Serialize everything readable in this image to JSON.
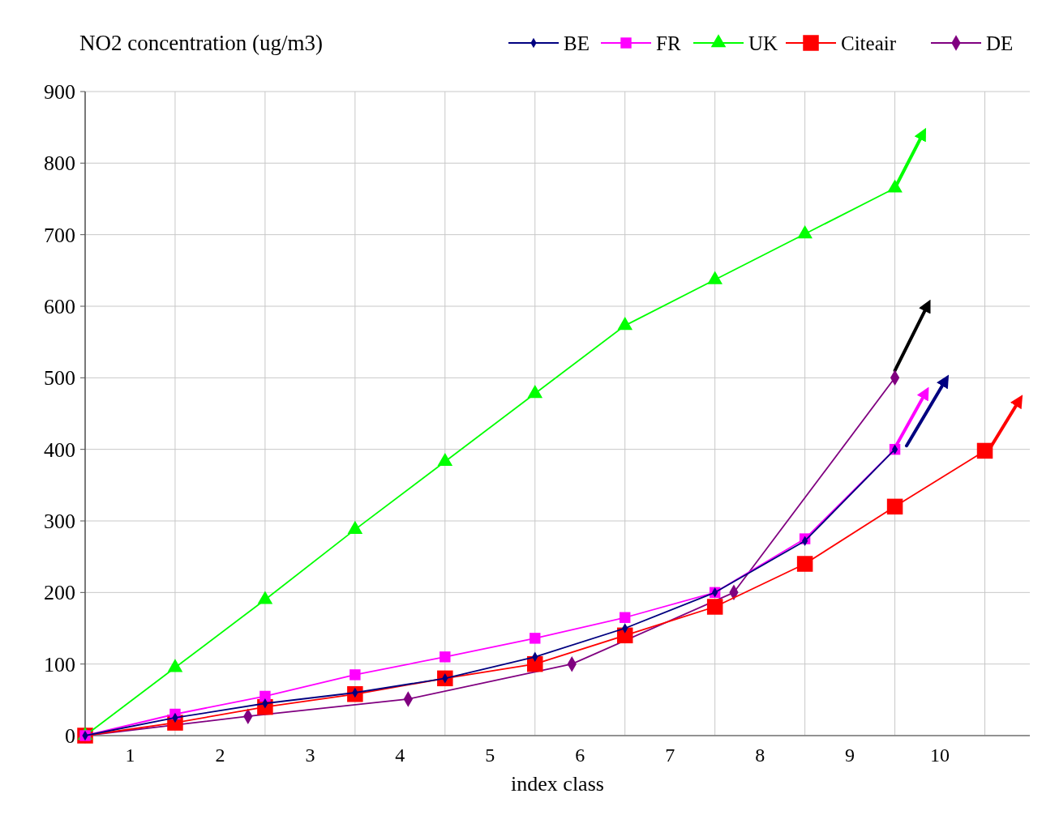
{
  "chart_data": {
    "type": "line",
    "title": "NO2 concentration (ug/m3)",
    "xlabel": "index class",
    "xlim": [
      0.5,
      11
    ],
    "ylim": [
      0,
      900
    ],
    "yticks": [
      0,
      100,
      200,
      300,
      400,
      500,
      600,
      700,
      800,
      900
    ],
    "xticks": [
      {
        "value": 0.5,
        "label": null
      },
      {
        "value": 1.5,
        "label": null
      },
      {
        "value": 2.5,
        "label": null
      },
      {
        "value": 3.5,
        "label": null
      },
      {
        "value": 4.5,
        "label": null
      },
      {
        "value": 5.5,
        "label": null
      },
      {
        "value": 6.5,
        "label": null
      },
      {
        "value": 7.5,
        "label": null
      },
      {
        "value": 8.5,
        "label": null
      },
      {
        "value": 9.5,
        "label": null
      },
      {
        "value": 10.5,
        "label": null
      },
      1,
      2,
      3,
      4,
      5,
      6,
      7,
      8,
      9,
      10
    ],
    "grid": true,
    "legend": "top right",
    "series": [
      {
        "name": "BE",
        "color": "#000080",
        "marker": "diamond",
        "x": [
          0.5,
          1.5,
          2.5,
          3.5,
          4.5,
          5.5,
          6.5,
          7.5,
          8.5,
          9.5
        ],
        "values": [
          0,
          25,
          45,
          60,
          80,
          110,
          150,
          200,
          272,
          400
        ]
      },
      {
        "name": "FR",
        "color": "#ff00ff",
        "marker": "square",
        "x": [
          0.5,
          1.5,
          2.5,
          3.5,
          4.5,
          5.5,
          6.5,
          7.5,
          8.5,
          9.5
        ],
        "values": [
          0,
          30,
          55,
          85,
          110,
          136,
          165,
          200,
          275,
          400
        ]
      },
      {
        "name": "UK",
        "color": "#00ff00",
        "marker": "triangle",
        "x": [
          0.5,
          1.5,
          2.5,
          3.5,
          4.5,
          5.5,
          6.5,
          7.5,
          8.5,
          9.5
        ],
        "values": [
          0,
          95,
          190,
          288,
          383,
          478,
          573,
          637,
          701,
          765
        ]
      },
      {
        "name": "Citeair",
        "color": "#ff0000",
        "marker": "square",
        "x": [
          0.5,
          1.5,
          2.5,
          3.5,
          4.5,
          5.5,
          6.5,
          7.5,
          8.5,
          9.5,
          10.5
        ],
        "values": [
          0,
          18,
          40,
          58,
          80,
          100,
          140,
          180,
          240,
          320,
          398
        ]
      },
      {
        "name": "DE",
        "color": "#800080",
        "marker": "diamond",
        "x": [
          0.5,
          2.31,
          4.09,
          5.91,
          7.71,
          9.5
        ],
        "values": [
          0,
          27,
          51,
          100,
          200,
          500
        ]
      },
      {
        "color": "#00ff00",
        "marker": "none",
        "x": [
          9.5,
          9.82
        ],
        "values": [
          765,
          843
        ]
      },
      {
        "color": "#000000",
        "marker": "none",
        "x": [
          9.5,
          9.87
        ],
        "values": [
          510,
          603
        ]
      },
      {
        "color": "#ff00ff",
        "marker": "none",
        "x": [
          9.5,
          9.85
        ],
        "values": [
          402,
          481
        ]
      },
      {
        "color": "#000080",
        "marker": "none",
        "x": [
          9.63,
          10.07
        ],
        "values": [
          405,
          498
        ]
      },
      {
        "color": "#ff0000",
        "marker": "none",
        "x": [
          10.53,
          10.89
        ],
        "values": [
          396,
          470
        ]
      }
    ]
  }
}
